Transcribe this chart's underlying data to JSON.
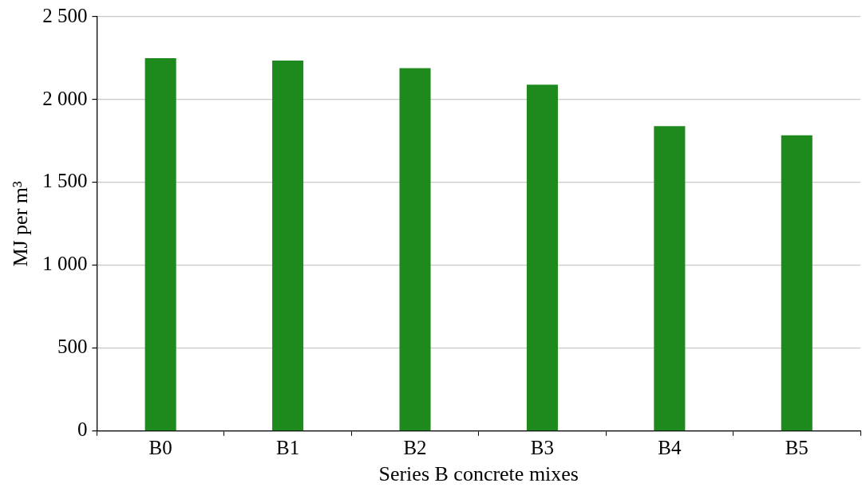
{
  "chart_data": {
    "type": "bar",
    "xlabel": "Series B concrete mixes",
    "ylabel": "MJ per m³",
    "categories": [
      "B0",
      "B1",
      "B2",
      "B3",
      "B4",
      "B5"
    ],
    "values": [
      2250,
      2235,
      2190,
      2090,
      1840,
      1785
    ],
    "color": "#1e8a1e",
    "ylim": [
      0,
      2500
    ],
    "yticks": [
      0,
      500,
      {
        "value": 1000,
        "label": "1 000"
      },
      {
        "value": 1500,
        "label": "1 500"
      },
      {
        "value": 2000,
        "label": "2 000"
      },
      {
        "value": 2500,
        "label": "2 500"
      }
    ],
    "grid": "y"
  }
}
